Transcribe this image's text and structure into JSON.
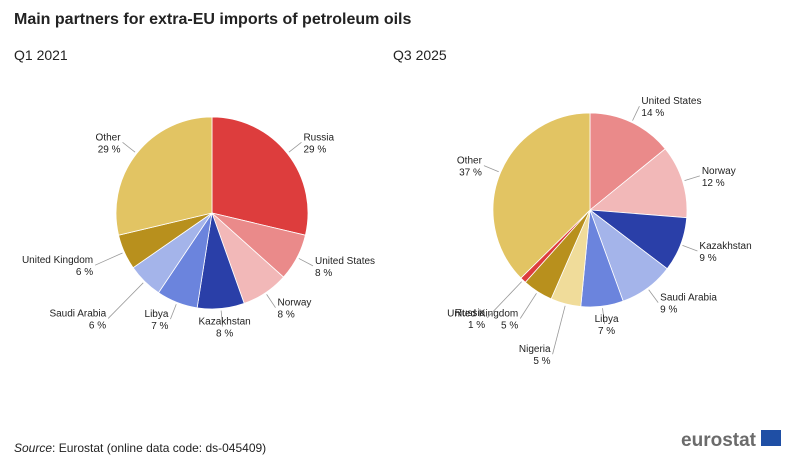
{
  "title": "Main partners for extra-EU imports of petroleum oils",
  "chart_data": [
    {
      "type": "pie",
      "title": "Q1 2021",
      "categories": [
        "Russia",
        "United States",
        "Norway",
        "Kazakhstan",
        "Libya",
        "Saudi Arabia",
        "United Kingdom",
        "Other"
      ],
      "values": [
        29,
        8,
        8,
        8,
        7,
        6,
        6,
        29
      ],
      "value_labels": [
        "29 %",
        "8 %",
        "8 %",
        "8 %",
        "7 %",
        "6 %",
        "6 %",
        "29 %"
      ],
      "colors": [
        "#dd3d3d",
        "#ea8a8a",
        "#f2b8b8",
        "#2a3fa8",
        "#6b84dd",
        "#a4b4ea",
        "#b8901d",
        "#e2c463"
      ]
    },
    {
      "type": "pie",
      "title": "Q3 2025",
      "categories": [
        "United States",
        "Norway",
        "Kazakhstan",
        "Saudi Arabia",
        "Libya",
        "Nigeria",
        "United Kingdom",
        "Russia",
        "Other"
      ],
      "values": [
        14,
        12,
        9,
        9,
        7,
        5,
        5,
        1,
        37
      ],
      "value_labels": [
        "14 %",
        "12 %",
        "9 %",
        "9 %",
        "7 %",
        "5 %",
        "5 %",
        "1 %",
        "37 %"
      ],
      "colors": [
        "#ea8a8a",
        "#f2b8b8",
        "#2a3fa8",
        "#a4b4ea",
        "#6b84dd",
        "#f0dc9a",
        "#b8901d",
        "#dd3d3d",
        "#e2c463"
      ]
    }
  ],
  "source_label": "Source",
  "source_text": ": Eurostat (online data code: ds-045409)",
  "logo": "eurostat"
}
